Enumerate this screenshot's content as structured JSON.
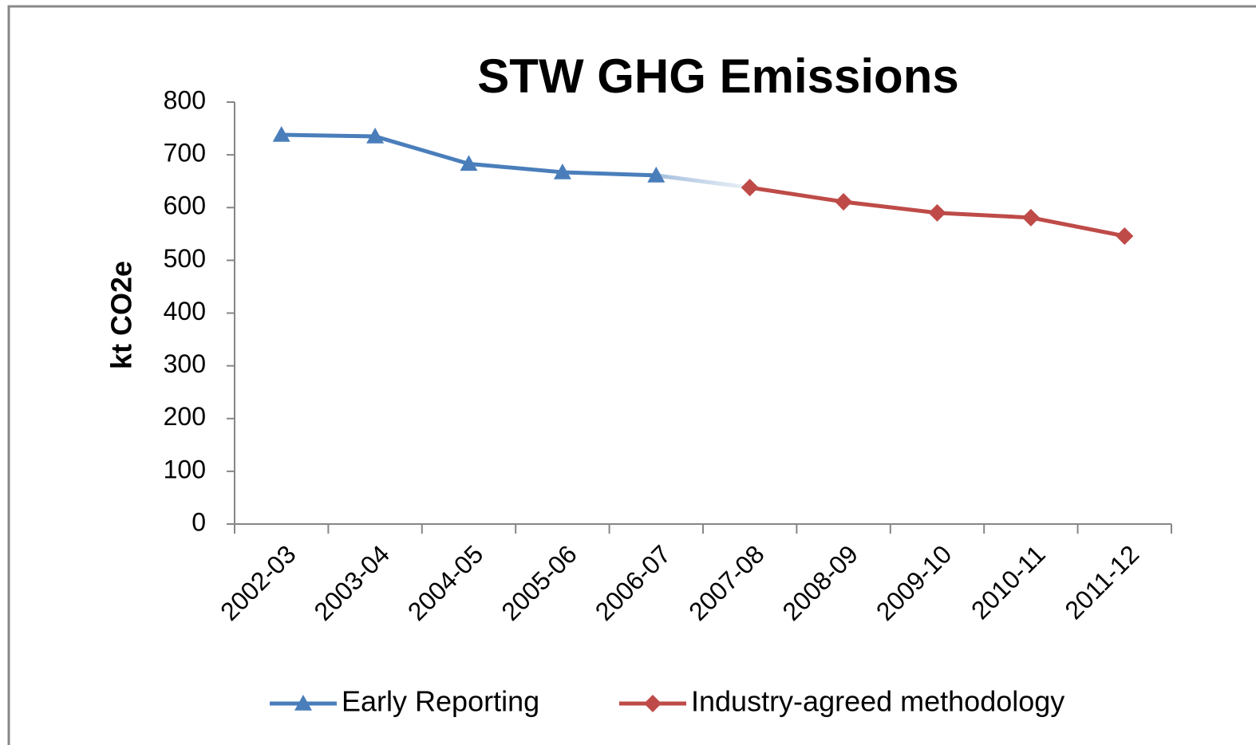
{
  "chart_data": {
    "type": "line",
    "title": "STW GHG Emissions",
    "y_label": "kt CO2e",
    "categories": [
      "2002-03",
      "2003-04",
      "2004-05",
      "2005-06",
      "2006-07",
      "2007-08",
      "2008-09",
      "2009-10",
      "2010-11",
      "2011-12"
    ],
    "series": [
      {
        "name": "Early Reporting",
        "color": "#4a7ebb",
        "marker": "triangle",
        "values": [
          738,
          735,
          683,
          667,
          661,
          null,
          null,
          null,
          null,
          null
        ]
      },
      {
        "name": "Industry-agreed methodology",
        "color": "#be4b48",
        "marker": "diamond",
        "values": [
          null,
          null,
          null,
          null,
          null,
          638,
          611,
          590,
          581,
          546
        ]
      }
    ],
    "ylim": [
      0,
      800
    ],
    "yticks": [
      0,
      100,
      200,
      300,
      400,
      500,
      600,
      700,
      800
    ],
    "grid": false,
    "legend": "bottom"
  }
}
